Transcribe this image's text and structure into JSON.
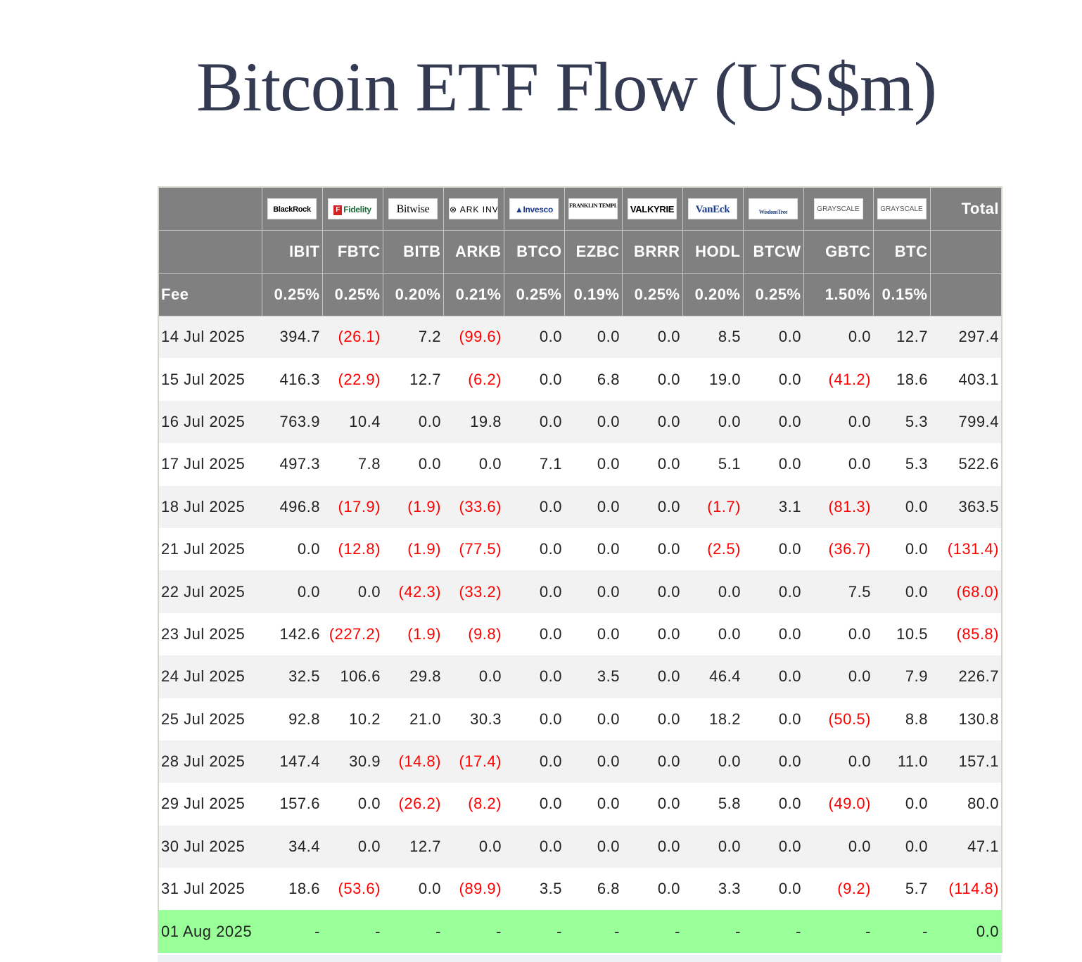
{
  "title": "Bitcoin ETF Flow (US$m)",
  "issuers": [
    "BlackRock",
    "Fidelity",
    "Bitwise",
    "ARK INVEST",
    "Invesco",
    "FRANKLIN TEMPLETON",
    "VALKYRIE",
    "VanEck",
    "WisdomTree",
    "GRAYSCALE",
    "GRAYSCALE"
  ],
  "total_label": "Total",
  "tickers": [
    "IBIT",
    "FBTC",
    "BITB",
    "ARKB",
    "BTCO",
    "EZBC",
    "BRRR",
    "HODL",
    "BTCW",
    "GBTC",
    "BTC"
  ],
  "fee_label": "Fee",
  "fees": [
    "0.25%",
    "0.25%",
    "0.20%",
    "0.21%",
    "0.25%",
    "0.19%",
    "0.25%",
    "0.20%",
    "0.25%",
    "1.50%",
    "0.15%"
  ],
  "rows": [
    {
      "date": "14 Jul 2025",
      "values": [
        "394.7",
        "(26.1)",
        "7.2",
        "(99.6)",
        "0.0",
        "0.0",
        "0.0",
        "8.5",
        "0.0",
        "0.0",
        "12.7"
      ],
      "total": "297.4"
    },
    {
      "date": "15 Jul 2025",
      "values": [
        "416.3",
        "(22.9)",
        "12.7",
        "(6.2)",
        "0.0",
        "6.8",
        "0.0",
        "19.0",
        "0.0",
        "(41.2)",
        "18.6"
      ],
      "total": "403.1"
    },
    {
      "date": "16 Jul 2025",
      "values": [
        "763.9",
        "10.4",
        "0.0",
        "19.8",
        "0.0",
        "0.0",
        "0.0",
        "0.0",
        "0.0",
        "0.0",
        "5.3"
      ],
      "total": "799.4"
    },
    {
      "date": "17 Jul 2025",
      "values": [
        "497.3",
        "7.8",
        "0.0",
        "0.0",
        "7.1",
        "0.0",
        "0.0",
        "5.1",
        "0.0",
        "0.0",
        "5.3"
      ],
      "total": "522.6"
    },
    {
      "date": "18 Jul 2025",
      "values": [
        "496.8",
        "(17.9)",
        "(1.9)",
        "(33.6)",
        "0.0",
        "0.0",
        "0.0",
        "(1.7)",
        "3.1",
        "(81.3)",
        "0.0"
      ],
      "total": "363.5"
    },
    {
      "date": "21 Jul 2025",
      "values": [
        "0.0",
        "(12.8)",
        "(1.9)",
        "(77.5)",
        "0.0",
        "0.0",
        "0.0",
        "(2.5)",
        "0.0",
        "(36.7)",
        "0.0"
      ],
      "total": "(131.4)"
    },
    {
      "date": "22 Jul 2025",
      "values": [
        "0.0",
        "0.0",
        "(42.3)",
        "(33.2)",
        "0.0",
        "0.0",
        "0.0",
        "0.0",
        "0.0",
        "7.5",
        "0.0"
      ],
      "total": "(68.0)"
    },
    {
      "date": "23 Jul 2025",
      "values": [
        "142.6",
        "(227.2)",
        "(1.9)",
        "(9.8)",
        "0.0",
        "0.0",
        "0.0",
        "0.0",
        "0.0",
        "0.0",
        "10.5"
      ],
      "total": "(85.8)"
    },
    {
      "date": "24 Jul 2025",
      "values": [
        "32.5",
        "106.6",
        "29.8",
        "0.0",
        "0.0",
        "3.5",
        "0.0",
        "46.4",
        "0.0",
        "0.0",
        "7.9"
      ],
      "total": "226.7"
    },
    {
      "date": "25 Jul 2025",
      "values": [
        "92.8",
        "10.2",
        "21.0",
        "30.3",
        "0.0",
        "0.0",
        "0.0",
        "18.2",
        "0.0",
        "(50.5)",
        "8.8"
      ],
      "total": "130.8"
    },
    {
      "date": "28 Jul 2025",
      "values": [
        "147.4",
        "30.9",
        "(14.8)",
        "(17.4)",
        "0.0",
        "0.0",
        "0.0",
        "0.0",
        "0.0",
        "0.0",
        "11.0"
      ],
      "total": "157.1"
    },
    {
      "date": "29 Jul 2025",
      "values": [
        "157.6",
        "0.0",
        "(26.2)",
        "(8.2)",
        "0.0",
        "0.0",
        "0.0",
        "5.8",
        "0.0",
        "(49.0)",
        "0.0"
      ],
      "total": "80.0"
    },
    {
      "date": "30 Jul 2025",
      "values": [
        "34.4",
        "0.0",
        "12.7",
        "0.0",
        "0.0",
        "0.0",
        "0.0",
        "0.0",
        "0.0",
        "0.0",
        "0.0"
      ],
      "total": "47.1"
    },
    {
      "date": "31 Jul 2025",
      "values": [
        "18.6",
        "(53.6)",
        "0.0",
        "(89.9)",
        "3.5",
        "6.8",
        "0.0",
        "3.3",
        "0.0",
        "(9.2)",
        "5.7"
      ],
      "total": "(114.8)"
    },
    {
      "date": "01 Aug 2025",
      "values": [
        "-",
        "-",
        "-",
        "-",
        "-",
        "-",
        "-",
        "-",
        "-",
        "-",
        "-"
      ],
      "total": "0.0",
      "highlight": true
    }
  ],
  "colors": {
    "header_bg": "#808080",
    "negative": "#ff0000",
    "latest_row": "#99ff99",
    "stripe": "#f2f2f2",
    "title": "#333a52"
  }
}
